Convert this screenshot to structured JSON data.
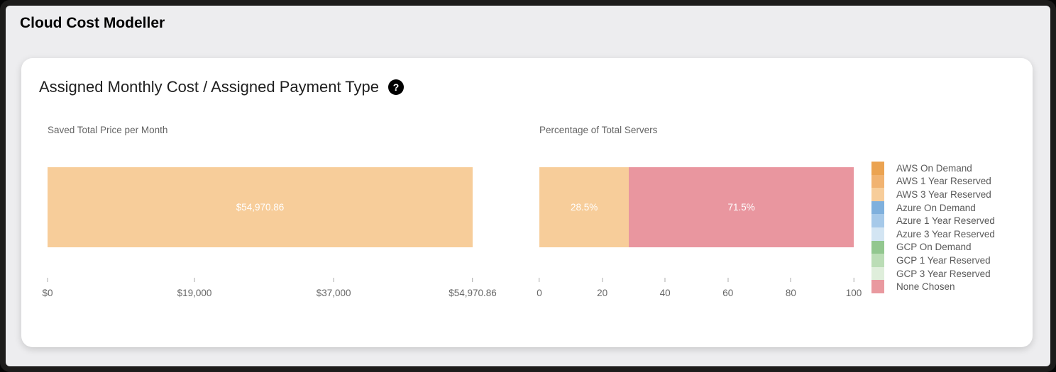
{
  "page": {
    "title": "Cloud Cost Modeller"
  },
  "card": {
    "heading": "Assigned Monthly Cost / Assigned Payment Type",
    "help_icon": "?"
  },
  "chart_data": [
    {
      "type": "bar",
      "orientation": "horizontal",
      "title": "Saved Total Price per Month",
      "xlim": [
        0,
        54970.86
      ],
      "grid": false,
      "series": [
        {
          "name": "AWS 3 Year Reserved",
          "value": 54970.86,
          "label": "$54,970.86",
          "color": "#f7cd9a"
        }
      ],
      "ticks": [
        {
          "value": 0,
          "label": "$0"
        },
        {
          "value": 19000,
          "label": "$19,000"
        },
        {
          "value": 37000,
          "label": "$37,000"
        },
        {
          "value": 54970.86,
          "label": "$54,970.86"
        }
      ]
    },
    {
      "type": "bar",
      "subtype": "stacked",
      "orientation": "horizontal",
      "title": "Percentage of Total Servers",
      "xlim": [
        0,
        100
      ],
      "grid": false,
      "series": [
        {
          "name": "AWS 3 Year Reserved",
          "value": 28.5,
          "label": "28.5%",
          "color": "#f7cd9a"
        },
        {
          "name": "None Chosen",
          "value": 71.5,
          "label": "71.5%",
          "color": "#e9969f"
        }
      ],
      "ticks": [
        {
          "value": 0,
          "label": "0"
        },
        {
          "value": 20,
          "label": "20"
        },
        {
          "value": 40,
          "label": "40"
        },
        {
          "value": 60,
          "label": "60"
        },
        {
          "value": 80,
          "label": "80"
        },
        {
          "value": 100,
          "label": "100"
        }
      ]
    }
  ],
  "legend": {
    "position": "right",
    "items": [
      {
        "label": "AWS On Demand",
        "color": "#eba351"
      },
      {
        "label": "AWS 1 Year Reserved",
        "color": "#f1b371"
      },
      {
        "label": "AWS 3 Year Reserved",
        "color": "#f7cd9a"
      },
      {
        "label": "Azure On Demand",
        "color": "#7fb0dd"
      },
      {
        "label": "Azure 1 Year Reserved",
        "color": "#a6c9e9"
      },
      {
        "label": "Azure 3 Year Reserved",
        "color": "#d3e5f3"
      },
      {
        "label": "GCP On Demand",
        "color": "#92c78f"
      },
      {
        "label": "GCP 1 Year Reserved",
        "color": "#bbddb6"
      },
      {
        "label": "GCP 3 Year Reserved",
        "color": "#dfeedb"
      },
      {
        "label": "None Chosen",
        "color": "#e9999f"
      }
    ]
  }
}
